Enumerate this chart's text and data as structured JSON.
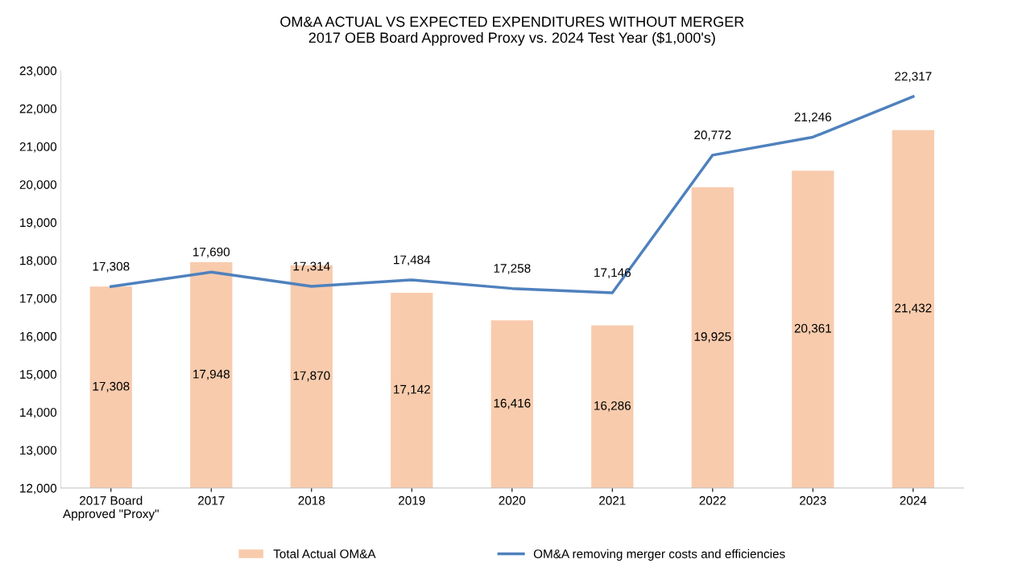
{
  "chart_data": {
    "type": "bar",
    "title": "OM&A ACTUAL VS EXPECTED EXPENDITURES WITHOUT MERGER\n2017 OEB Board Approved Proxy vs. 2024 Test Year ($1,000's)",
    "categories": [
      "2017 Board\nApproved \"Proxy\"",
      "2017",
      "2018",
      "2019",
      "2020",
      "2021",
      "2022",
      "2023",
      "2024"
    ],
    "series": [
      {
        "name": "Total Actual OM&A",
        "color": "#f8cbad",
        "values": [
          17308,
          17948,
          17870,
          17142,
          16416,
          16286,
          19925,
          20361,
          21432
        ],
        "value_labels": [
          "17,308",
          "17,948",
          "17,870",
          "17,142",
          "16,416",
          "16,286",
          "19,925",
          "20,361",
          "21,432"
        ]
      },
      {
        "name": "OM&A removing merger costs and efficiencies",
        "type": "line",
        "color": "#4f81bd",
        "values": [
          17308,
          17690,
          17314,
          17484,
          17258,
          17146,
          20772,
          21246,
          22317
        ],
        "value_labels": [
          "17,308",
          "17,690",
          "17,314",
          "17,484",
          "17,258",
          "17,146",
          "20,772",
          "21,246",
          "22,317"
        ]
      }
    ],
    "ylim": [
      12000,
      23000
    ],
    "yticks": [
      {
        "value": 12000,
        "label": "12,000"
      },
      {
        "value": 13000,
        "label": "13,000"
      },
      {
        "value": 14000,
        "label": "14,000"
      },
      {
        "value": 15000,
        "label": "15,000"
      },
      {
        "value": 16000,
        "label": "16,000"
      },
      {
        "value": 17000,
        "label": "17,000"
      },
      {
        "value": 18000,
        "label": "18,000"
      },
      {
        "value": 19000,
        "label": "19,000"
      },
      {
        "value": 20000,
        "label": "20,000"
      },
      {
        "value": 21000,
        "label": "21,000"
      },
      {
        "value": 22000,
        "label": "22,000"
      },
      {
        "value": 23000,
        "label": "23,000"
      }
    ],
    "grid": false,
    "legend": "bottom",
    "marker": "none",
    "line_style": "solid"
  }
}
